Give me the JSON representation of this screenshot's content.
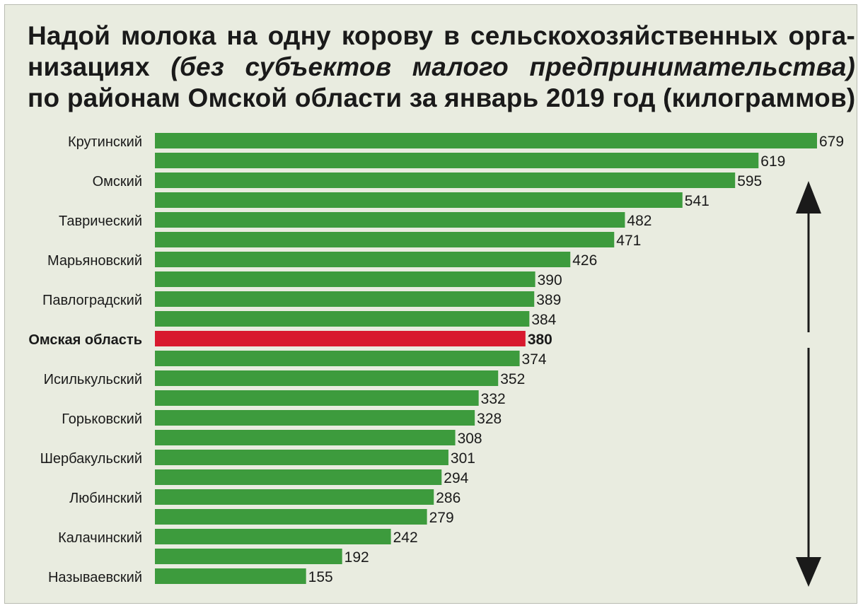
{
  "title": {
    "line1": "Надой молока на одну корову в сельскохозяйственных орга-",
    "line2_normal": "низациях",
    "line2_italic": "(без субъектов малого предпринимательства)",
    "line3": "по районам Омской области за январь 2019 год (килограммов)"
  },
  "chart_data": {
    "type": "bar",
    "orientation": "horizontal",
    "title": "Надой молока на одну корову в сельскохозяйственных организациях (без субъектов малого предпринимательства) по районам Омской области за январь 2019 год (килограммов)",
    "unit": "килограммов",
    "bars": [
      {
        "label": "Крутинский",
        "value": 679
      },
      {
        "label": "",
        "value": 619
      },
      {
        "label": "Омский",
        "value": 595
      },
      {
        "label": "",
        "value": 541
      },
      {
        "label": "Таврический",
        "value": 482
      },
      {
        "label": "",
        "value": 471
      },
      {
        "label": "Марьяновский",
        "value": 426
      },
      {
        "label": "",
        "value": 390
      },
      {
        "label": "Павлоградский",
        "value": 389
      },
      {
        "label": "",
        "value": 384
      },
      {
        "label": "Омская область",
        "value": 380,
        "highlight": true
      },
      {
        "label": "",
        "value": 374
      },
      {
        "label": "Исилькульский",
        "value": 352
      },
      {
        "label": "",
        "value": 332
      },
      {
        "label": "Горьковский",
        "value": 328
      },
      {
        "label": "",
        "value": 308
      },
      {
        "label": "Шербакульский",
        "value": 301
      },
      {
        "label": "",
        "value": 294
      },
      {
        "label": "Любинский",
        "value": 286
      },
      {
        "label": "",
        "value": 279
      },
      {
        "label": "Калачинский",
        "value": 242
      },
      {
        "label": "",
        "value": 192
      },
      {
        "label": "Называевский",
        "value": 155
      }
    ],
    "xlim": [
      0,
      679
    ],
    "grid": false,
    "legend": "none",
    "colors": {
      "bar": "#3d9b3d",
      "highlight": "#d8192e",
      "text": "#1a1a1a",
      "background": "#e9ece0"
    },
    "annotations": [
      {
        "type": "arrow",
        "direction": "up",
        "meaning": "above regional average"
      },
      {
        "type": "arrow",
        "direction": "down",
        "meaning": "below regional average"
      }
    ]
  }
}
